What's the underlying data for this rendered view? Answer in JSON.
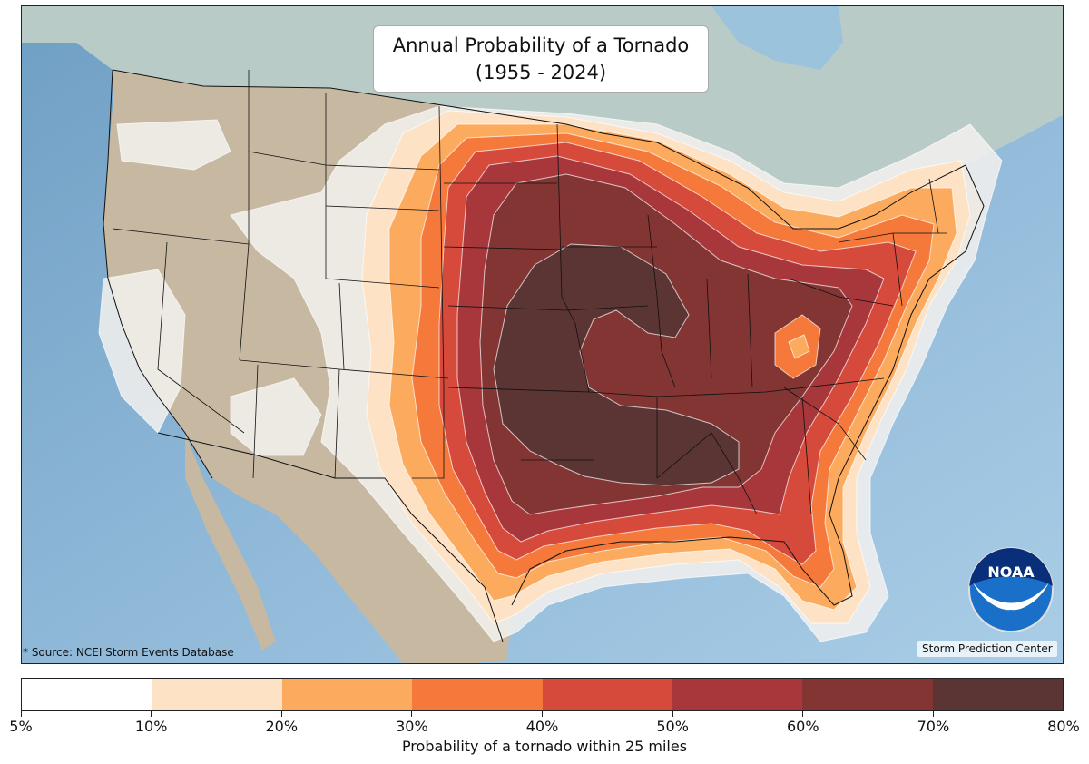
{
  "map": {
    "title_line1": "Annual Probability of a Tornado",
    "title_line2": "(1955 - 2024)",
    "source_note": "* Source: NCEI Storm Events Database",
    "credit": "Storm Prediction Center",
    "logo_text": "NOAA",
    "region": "Contiguous United States",
    "colors": {
      "ocean": "#8fb8d8",
      "land": "#c9bba6",
      "canada": "#b9cdc8"
    }
  },
  "colorbar": {
    "label": "Probability of a tornado within 25 miles",
    "ticks": [
      "5%",
      "10%",
      "20%",
      "30%",
      "40%",
      "50%",
      "60%",
      "70%",
      "80%"
    ],
    "colors": [
      "#ffffff",
      "#fde2c6",
      "#fcab5e",
      "#f4793b",
      "#d64a3b",
      "#a8373b",
      "#833534",
      "#5b3533"
    ]
  }
}
